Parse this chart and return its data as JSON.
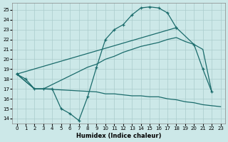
{
  "xlabel": "Humidex (Indice chaleur)",
  "bg_color": "#cce8e8",
  "grid_color": "#aacccc",
  "line_color": "#1a6b6b",
  "xlim": [
    -0.5,
    23.5
  ],
  "ylim": [
    13.5,
    25.7
  ],
  "xticks": [
    0,
    1,
    2,
    3,
    4,
    5,
    6,
    7,
    8,
    9,
    10,
    11,
    12,
    13,
    14,
    15,
    16,
    17,
    18,
    19,
    20,
    21,
    22,
    23
  ],
  "yticks": [
    14,
    15,
    16,
    17,
    18,
    19,
    20,
    21,
    22,
    23,
    24,
    25
  ],
  "curve_bell_x": [
    0,
    1,
    2,
    3,
    4,
    5,
    6,
    7,
    8,
    9,
    10,
    11,
    12,
    13,
    14,
    15,
    16,
    17,
    18
  ],
  "curve_bell_y": [
    18.5,
    18.0,
    17.0,
    17.0,
    17.0,
    15.0,
    14.5,
    13.8,
    16.2,
    19.2,
    22.0,
    23.0,
    23.5,
    24.5,
    25.2,
    25.3,
    25.2,
    24.7,
    23.2
  ],
  "curve_diag1_x": [
    0,
    18,
    20,
    21,
    22
  ],
  "curve_diag1_y": [
    18.5,
    23.2,
    21.5,
    19.0,
    16.7
  ],
  "curve_diag2_x": [
    0,
    2,
    3,
    8,
    9,
    10,
    11,
    12,
    13,
    14,
    15,
    16,
    17,
    18,
    19,
    20,
    21,
    22
  ],
  "curve_diag2_y": [
    18.5,
    17.0,
    17.0,
    19.2,
    19.5,
    20.0,
    20.3,
    20.7,
    21.0,
    21.3,
    21.5,
    21.7,
    22.0,
    22.2,
    21.8,
    21.5,
    21.0,
    16.7
  ],
  "curve_flat_x": [
    0,
    2,
    3,
    9,
    10,
    11,
    12,
    13,
    14,
    15,
    16,
    17,
    18,
    19,
    20,
    21,
    22,
    23
  ],
  "curve_flat_y": [
    18.5,
    17.0,
    17.0,
    16.7,
    16.5,
    16.5,
    16.4,
    16.3,
    16.3,
    16.2,
    16.2,
    16.0,
    15.9,
    15.7,
    15.6,
    15.4,
    15.3,
    15.2
  ]
}
